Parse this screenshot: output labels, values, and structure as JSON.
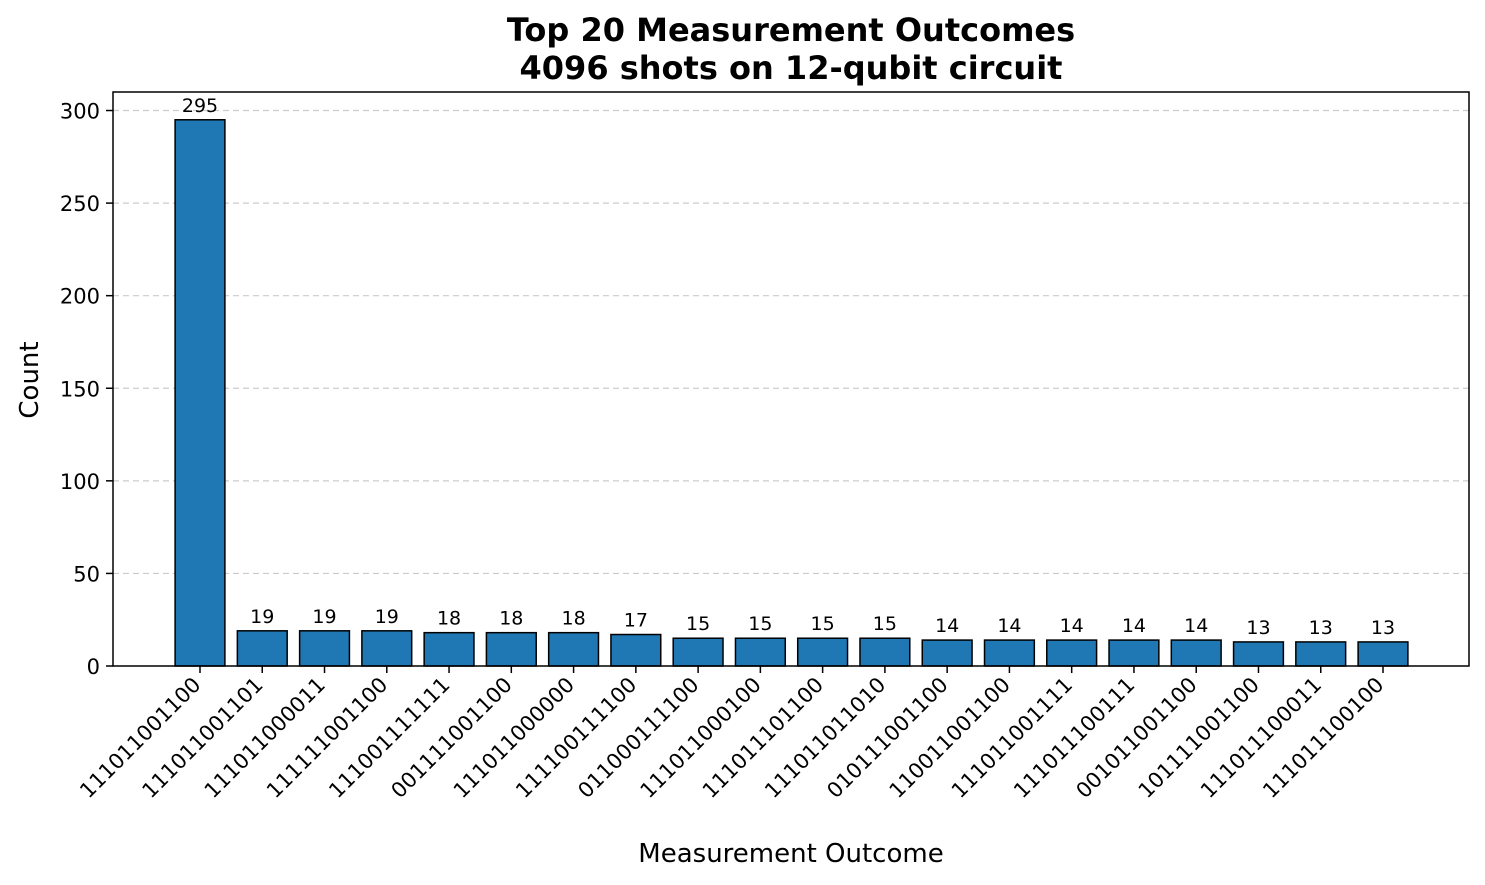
{
  "chart_data": {
    "type": "bar",
    "title": [
      "Top 20 Measurement Outcomes",
      "4096 shots on 12-qubit circuit"
    ],
    "xlabel": "Measurement Outcome",
    "ylabel": "Count",
    "ylim": [
      0,
      310
    ],
    "yticks": [
      0,
      50,
      100,
      150,
      200,
      250,
      300
    ],
    "grid": "y-dashed",
    "bar_color": "#1f77b4",
    "categories": [
      "111011001100",
      "111011001101",
      "111011000011",
      "111111001100",
      "111001111111",
      "001111001100",
      "111011000000",
      "111100111100",
      "011000111100",
      "111011000100",
      "111011101100",
      "111011011010",
      "010111001100",
      "110011001100",
      "111011001111",
      "111011100111",
      "001011001100",
      "101111001100",
      "111011100011",
      "111011100100"
    ],
    "values": [
      295,
      19,
      19,
      19,
      18,
      18,
      18,
      17,
      15,
      15,
      15,
      15,
      14,
      14,
      14,
      14,
      14,
      13,
      13,
      13
    ]
  }
}
